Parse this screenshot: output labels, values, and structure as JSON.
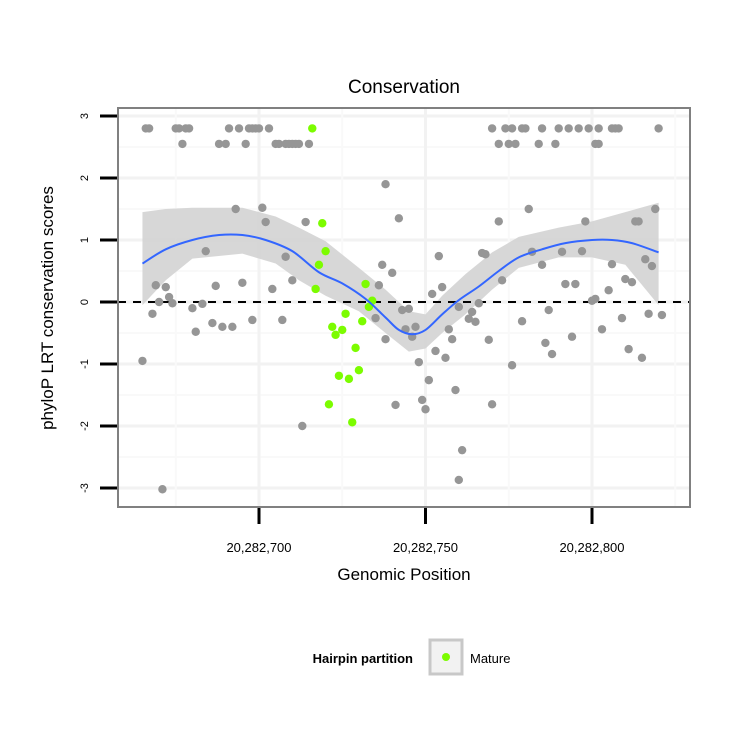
{
  "chart_data": {
    "type": "scatter",
    "title": "Conservation",
    "xlabel": "Genomic Position",
    "ylabel": "phyloP LRT conservation scores",
    "xlim": [
      20282657.7,
      20282829.4
    ],
    "ylim": [
      -3.13,
      3.13
    ],
    "x_ticks": [
      20282700,
      20282750,
      20282800
    ],
    "x_tick_labels": [
      "20,282,700",
      "20,282,750",
      "20,282,800"
    ],
    "y_ticks": [
      3,
      2,
      1,
      0,
      -1,
      -2,
      -3
    ],
    "y_tick_labels": [
      "3",
      "2",
      "1",
      "0",
      "-1",
      "-2",
      "-3"
    ],
    "grid": true,
    "reference_line": {
      "y": 0,
      "style": "dashed"
    },
    "legend": {
      "title": "Hairpin partition",
      "entries": [
        "Mature"
      ],
      "placement": "bottom"
    },
    "colors": {
      "mature": "#7cfc00",
      "other": "#969696",
      "smooth": "#3366ff",
      "ribbon": "#d3d3d3"
    },
    "point_fields": [
      "position",
      "score",
      "is_mature"
    ],
    "points": [
      [
        20282666,
        2.8,
        0
      ],
      [
        20282667,
        2.8,
        0
      ],
      [
        20282675,
        2.8,
        0
      ],
      [
        20282676,
        2.8,
        0
      ],
      [
        20282678,
        2.8,
        0
      ],
      [
        20282679,
        2.8,
        0
      ],
      [
        20282691,
        2.8,
        0
      ],
      [
        20282694,
        2.8,
        0
      ],
      [
        20282697,
        2.8,
        0
      ],
      [
        20282698,
        2.8,
        0
      ],
      [
        20282699,
        2.8,
        0
      ],
      [
        20282700,
        2.8,
        0
      ],
      [
        20282703,
        2.8,
        0
      ],
      [
        20282716,
        2.8,
        1
      ],
      [
        20282770,
        2.8,
        0
      ],
      [
        20282774,
        2.8,
        0
      ],
      [
        20282776,
        2.8,
        0
      ],
      [
        20282779,
        2.8,
        0
      ],
      [
        20282780,
        2.8,
        0
      ],
      [
        20282785,
        2.8,
        0
      ],
      [
        20282790,
        2.8,
        0
      ],
      [
        20282793,
        2.8,
        0
      ],
      [
        20282796,
        2.8,
        0
      ],
      [
        20282799,
        2.8,
        0
      ],
      [
        20282802,
        2.8,
        0
      ],
      [
        20282806,
        2.8,
        0
      ],
      [
        20282807,
        2.8,
        0
      ],
      [
        20282808,
        2.8,
        0
      ],
      [
        20282820,
        2.8,
        0
      ],
      [
        20282677,
        2.55,
        0
      ],
      [
        20282688,
        2.55,
        0
      ],
      [
        20282690,
        2.55,
        0
      ],
      [
        20282696,
        2.55,
        0
      ],
      [
        20282705,
        2.55,
        0
      ],
      [
        20282706,
        2.55,
        0
      ],
      [
        20282708,
        2.55,
        0
      ],
      [
        20282709,
        2.55,
        0
      ],
      [
        20282710,
        2.55,
        0
      ],
      [
        20282711,
        2.55,
        0
      ],
      [
        20282712,
        2.55,
        0
      ],
      [
        20282715,
        2.55,
        0
      ],
      [
        20282772,
        2.55,
        0
      ],
      [
        20282775,
        2.55,
        0
      ],
      [
        20282777,
        2.55,
        0
      ],
      [
        20282784,
        2.55,
        0
      ],
      [
        20282789,
        2.55,
        0
      ],
      [
        20282801,
        2.55,
        0
      ],
      [
        20282802,
        2.55,
        0
      ],
      [
        20282693,
        1.5,
        0
      ],
      [
        20282701,
        1.52,
        0
      ],
      [
        20282702,
        1.29,
        0
      ],
      [
        20282714,
        1.29,
        0
      ],
      [
        20282684,
        0.82,
        0
      ],
      [
        20282708,
        0.73,
        0
      ],
      [
        20282669,
        0.27,
        0
      ],
      [
        20282672,
        0.24,
        0
      ],
      [
        20282687,
        0.26,
        0
      ],
      [
        20282695,
        0.31,
        0
      ],
      [
        20282704,
        0.21,
        0
      ],
      [
        20282710,
        0.35,
        0
      ],
      [
        20282673,
        0.08,
        0
      ],
      [
        20282670,
        0.0,
        0
      ],
      [
        20282674,
        -0.02,
        0
      ],
      [
        20282683,
        -0.03,
        0
      ],
      [
        20282680,
        -0.1,
        0
      ],
      [
        20282668,
        -0.19,
        0
      ],
      [
        20282686,
        -0.34,
        0
      ],
      [
        20282689,
        -0.4,
        0
      ],
      [
        20282692,
        -0.4,
        0
      ],
      [
        20282698,
        -0.29,
        0
      ],
      [
        20282707,
        -0.29,
        0
      ],
      [
        20282681,
        -0.48,
        0
      ],
      [
        20282665,
        -0.95,
        0
      ],
      [
        20282713,
        -2.0,
        0
      ],
      [
        20282671,
        -3.02,
        0
      ],
      [
        20282719,
        1.27,
        1
      ],
      [
        20282720,
        0.82,
        1
      ],
      [
        20282718,
        0.6,
        1
      ],
      [
        20282717,
        0.21,
        1
      ],
      [
        20282732,
        0.29,
        1
      ],
      [
        20282734,
        0.02,
        1
      ],
      [
        20282733,
        -0.08,
        1
      ],
      [
        20282726,
        -0.19,
        1
      ],
      [
        20282731,
        -0.31,
        1
      ],
      [
        20282722,
        -0.4,
        1
      ],
      [
        20282725,
        -0.45,
        1
      ],
      [
        20282723,
        -0.53,
        1
      ],
      [
        20282729,
        -0.74,
        1
      ],
      [
        20282730,
        -1.1,
        1
      ],
      [
        20282724,
        -1.19,
        1
      ],
      [
        20282727,
        -1.24,
        1
      ],
      [
        20282721,
        -1.65,
        1
      ],
      [
        20282728,
        -1.94,
        1
      ],
      [
        20282738,
        1.9,
        0
      ],
      [
        20282742,
        1.35,
        0
      ],
      [
        20282737,
        0.6,
        0
      ],
      [
        20282740,
        0.47,
        0
      ],
      [
        20282736,
        0.27,
        0
      ],
      [
        20282754,
        0.74,
        0
      ],
      [
        20282755,
        0.24,
        0
      ],
      [
        20282752,
        0.13,
        0
      ],
      [
        20282767,
        0.79,
        0
      ],
      [
        20282768,
        0.77,
        0
      ],
      [
        20282735,
        -0.26,
        0
      ],
      [
        20282743,
        -0.13,
        0
      ],
      [
        20282745,
        -0.11,
        0
      ],
      [
        20282744,
        -0.44,
        0
      ],
      [
        20282747,
        -0.4,
        0
      ],
      [
        20282746,
        -0.56,
        0
      ],
      [
        20282738,
        -0.6,
        0
      ],
      [
        20282760,
        -0.08,
        0
      ],
      [
        20282764,
        -0.16,
        0
      ],
      [
        20282766,
        -0.02,
        0
      ],
      [
        20282763,
        -0.27,
        0
      ],
      [
        20282765,
        -0.32,
        0
      ],
      [
        20282757,
        -0.44,
        0
      ],
      [
        20282758,
        -0.6,
        0
      ],
      [
        20282769,
        -0.61,
        0
      ],
      [
        20282753,
        -0.79,
        0
      ],
      [
        20282756,
        -0.9,
        0
      ],
      [
        20282748,
        -0.97,
        0
      ],
      [
        20282751,
        -1.26,
        0
      ],
      [
        20282759,
        -1.42,
        0
      ],
      [
        20282741,
        -1.66,
        0
      ],
      [
        20282749,
        -1.58,
        0
      ],
      [
        20282750,
        -1.73,
        0
      ],
      [
        20282770,
        -1.65,
        0
      ],
      [
        20282761,
        -2.39,
        0
      ],
      [
        20282760,
        -2.87,
        0
      ],
      [
        20282772,
        1.3,
        0
      ],
      [
        20282781,
        1.5,
        0
      ],
      [
        20282798,
        1.3,
        0
      ],
      [
        20282813,
        1.3,
        0
      ],
      [
        20282814,
        1.3,
        0
      ],
      [
        20282819,
        1.5,
        0
      ],
      [
        20282782,
        0.81,
        0
      ],
      [
        20282791,
        0.81,
        0
      ],
      [
        20282797,
        0.82,
        0
      ],
      [
        20282785,
        0.6,
        0
      ],
      [
        20282806,
        0.61,
        0
      ],
      [
        20282816,
        0.69,
        0
      ],
      [
        20282818,
        0.58,
        0
      ],
      [
        20282773,
        0.35,
        0
      ],
      [
        20282792,
        0.29,
        0
      ],
      [
        20282795,
        0.29,
        0
      ],
      [
        20282810,
        0.37,
        0
      ],
      [
        20282812,
        0.32,
        0
      ],
      [
        20282805,
        0.19,
        0
      ],
      [
        20282801,
        0.05,
        0
      ],
      [
        20282800,
        0.02,
        0
      ],
      [
        20282787,
        -0.13,
        0
      ],
      [
        20282817,
        -0.19,
        0
      ],
      [
        20282821,
        -0.21,
        0
      ],
      [
        20282779,
        -0.31,
        0
      ],
      [
        20282809,
        -0.26,
        0
      ],
      [
        20282803,
        -0.44,
        0
      ],
      [
        20282794,
        -0.56,
        0
      ],
      [
        20282786,
        -0.66,
        0
      ],
      [
        20282788,
        -0.84,
        0
      ],
      [
        20282811,
        -0.76,
        0
      ],
      [
        20282815,
        -0.9,
        0
      ],
      [
        20282776,
        -1.02,
        0
      ]
    ],
    "smooth": {
      "x": [
        20282665,
        20282672,
        20282680,
        20282688,
        20282695,
        20282702,
        20282710,
        20282718,
        20282725,
        20282732,
        20282738,
        20282742,
        20282746,
        20282750,
        20282755,
        20282760,
        20282766,
        20282772,
        20282778,
        20282785,
        20282792,
        20282800,
        20282806,
        20282812,
        20282820
      ],
      "y": [
        0.62,
        0.85,
        1.0,
        1.08,
        1.08,
        1.0,
        0.82,
        0.48,
        0.3,
        0.05,
        -0.25,
        -0.45,
        -0.52,
        -0.45,
        -0.2,
        0.03,
        0.25,
        0.5,
        0.72,
        0.85,
        0.95,
        1.0,
        1.0,
        0.95,
        0.8
      ]
    },
    "ribbon": {
      "x": [
        20282665,
        20282672,
        20282680,
        20282695,
        20282705,
        20282712,
        20282720,
        20282730,
        20282738,
        20282745,
        20282750,
        20282755,
        20282762,
        20282770,
        20282778,
        20282790,
        20282800,
        20282810,
        20282820
      ],
      "lower": [
        -0.05,
        0.35,
        0.7,
        0.78,
        0.62,
        0.35,
        0.1,
        -0.15,
        -0.5,
        -0.8,
        -0.75,
        -0.5,
        -0.2,
        0.2,
        0.55,
        0.72,
        0.72,
        0.6,
        -0.05
      ],
      "upper": [
        1.45,
        1.5,
        1.52,
        1.52,
        1.38,
        1.2,
        0.98,
        0.55,
        0.2,
        -0.15,
        -0.2,
        0.1,
        0.45,
        0.8,
        1.05,
        1.2,
        1.3,
        1.45,
        1.6
      ]
    }
  }
}
